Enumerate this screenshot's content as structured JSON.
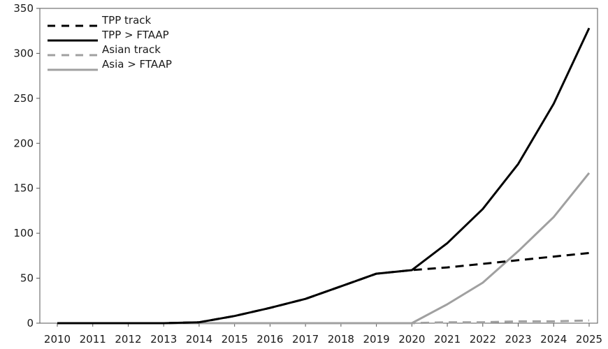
{
  "chart_data": {
    "type": "line",
    "title": "",
    "xlabel": "",
    "ylabel": "",
    "x": [
      2010,
      2011,
      2012,
      2013,
      2014,
      2015,
      2016,
      2017,
      2018,
      2019,
      2020,
      2021,
      2022,
      2023,
      2024,
      2025
    ],
    "ylim": [
      0,
      350
    ],
    "yticks": [
      0,
      50,
      100,
      150,
      200,
      250,
      300,
      350
    ],
    "grid": false,
    "legend_position": "top-left",
    "series": [
      {
        "name": "TPP track",
        "color": "#000000",
        "dash": "dashed",
        "values": [
          0,
          0,
          0,
          0,
          1,
          8,
          17,
          27,
          41,
          55,
          59,
          62,
          66,
          70,
          74,
          78
        ]
      },
      {
        "name": "TPP > FTAAP",
        "color": "#000000",
        "dash": "solid",
        "values": [
          0,
          0,
          0,
          0,
          1,
          8,
          17,
          27,
          41,
          55,
          59,
          89,
          127,
          177,
          244,
          328
        ]
      },
      {
        "name": "Asian track",
        "color": "#a0a0a0",
        "dash": "dashed",
        "values": [
          0,
          0,
          0,
          0,
          0,
          0,
          0,
          0,
          0,
          0,
          0,
          1,
          1,
          2,
          2,
          3
        ]
      },
      {
        "name": "Asia > FTAAP",
        "color": "#a0a0a0",
        "dash": "solid",
        "values": [
          0,
          0,
          0,
          0,
          0,
          0,
          0,
          0,
          0,
          0,
          0,
          21,
          45,
          80,
          118,
          167
        ]
      }
    ]
  }
}
